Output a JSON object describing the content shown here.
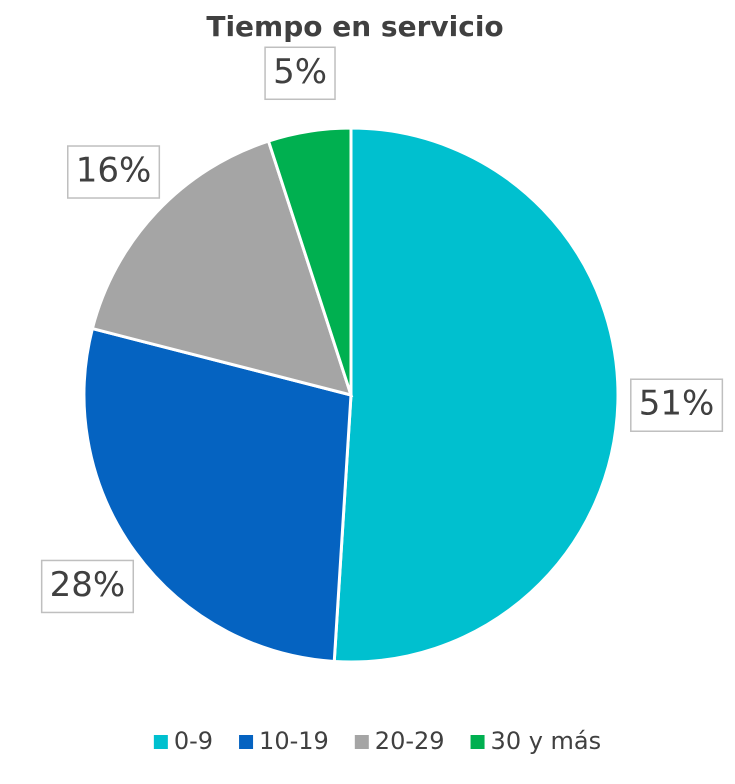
{
  "chart_data": {
    "type": "pie",
    "title": "Tiempo en servicio",
    "categories": [
      "0-9",
      "10-19",
      "20-29",
      "30 y más"
    ],
    "values": [
      51,
      28,
      16,
      5
    ],
    "value_labels": [
      "51%",
      "28%",
      "16%",
      "5%"
    ],
    "colors": [
      "#00c0cf",
      "#0563c1",
      "#a5a5a5",
      "#00b050"
    ],
    "legend": "bottom"
  }
}
